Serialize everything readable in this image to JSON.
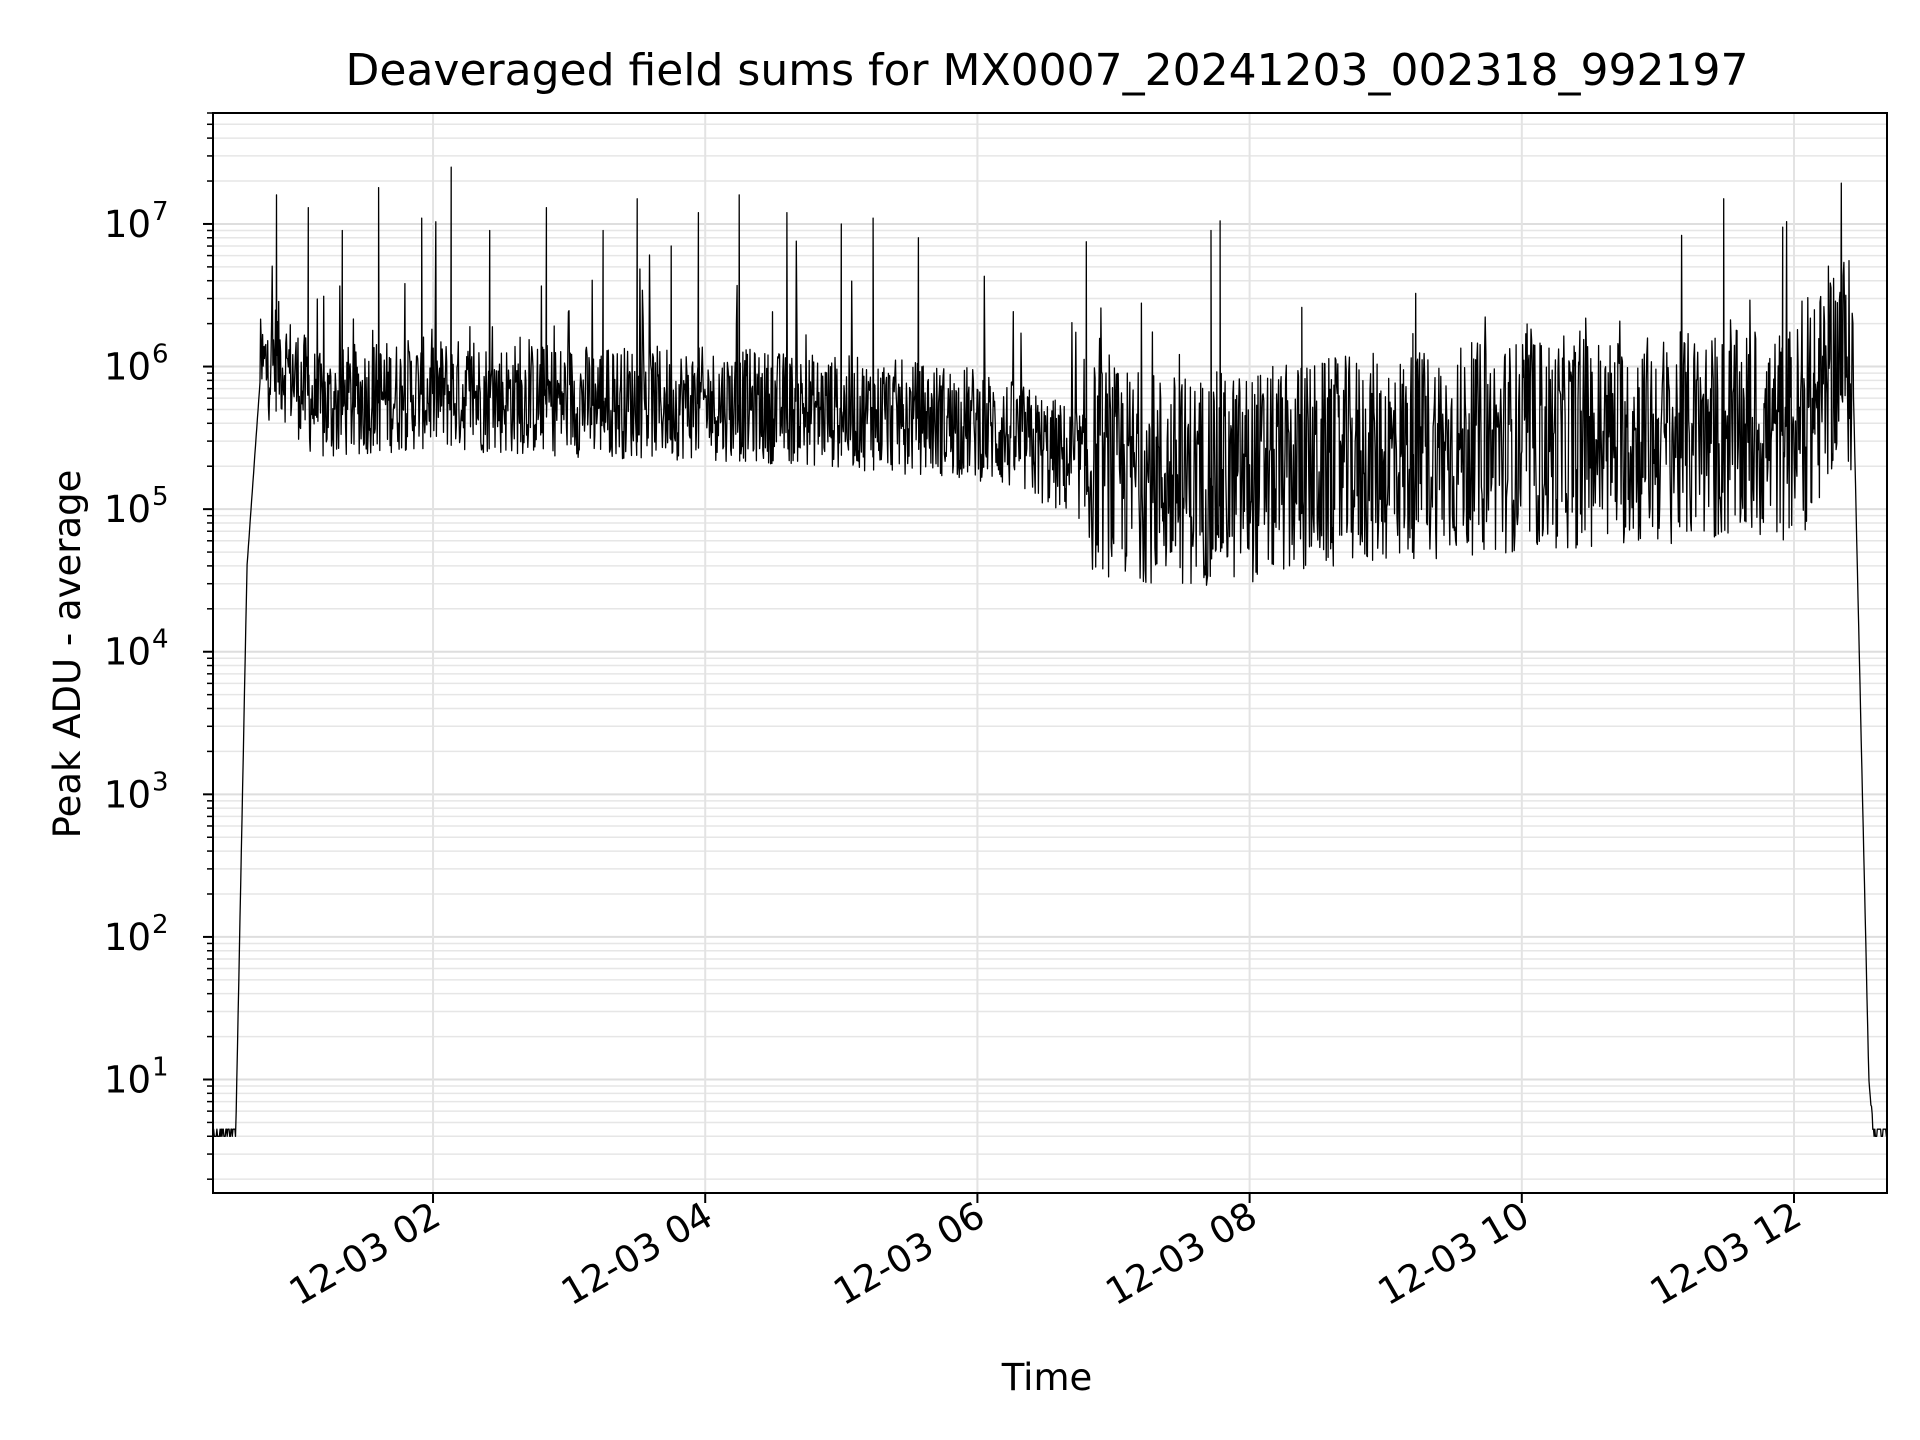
{
  "chart_data": {
    "type": "line",
    "title": "Deaveraged field sums for MX0007_20241203_002318_992197",
    "xlabel": "Time",
    "ylabel": "Peak ADU - average",
    "yscale": "log",
    "ylim": [
      1.6,
      60000000
    ],
    "xlim": [
      "2024-12-03 00:23",
      "2024-12-03 12:41"
    ],
    "grid": "major and minor, light gray",
    "line_color": "#000000",
    "x_ticks": [
      "12-03 02",
      "12-03 04",
      "12-03 06",
      "12-03 08",
      "12-03 10",
      "12-03 12"
    ],
    "y_ticks": [
      {
        "value": 10,
        "base": "10",
        "exp": "1"
      },
      {
        "value": 100,
        "base": "10",
        "exp": "2"
      },
      {
        "value": 1000,
        "base": "10",
        "exp": "3"
      },
      {
        "value": 10000,
        "base": "10",
        "exp": "4"
      },
      {
        "value": 100000,
        "base": "10",
        "exp": "5"
      },
      {
        "value": 1000000,
        "base": "10",
        "exp": "6"
      },
      {
        "value": 10000000,
        "base": "10",
        "exp": "7"
      }
    ],
    "series": [
      {
        "x": [
          "2024-12-03 00:23",
          "2024-12-03 00:32",
          "2024-12-03 00:33",
          "2024-12-03 00:38",
          "2024-12-03 00:44",
          "2024-12-03 00:51",
          "2024-12-03 01:10",
          "2024-12-03 01:30",
          "2024-12-03 02:00",
          "2024-12-03 02:30",
          "2024-12-03 03:00",
          "2024-12-03 03:30",
          "2024-12-03 04:00",
          "2024-12-03 04:30",
          "2024-12-03 05:00",
          "2024-12-03 05:30",
          "2024-12-03 06:00",
          "2024-12-03 06:20",
          "2024-12-03 06:40",
          "2024-12-03 07:00",
          "2024-12-03 07:30",
          "2024-12-03 08:00",
          "2024-12-03 08:30",
          "2024-12-03 09:00",
          "2024-12-03 09:30",
          "2024-12-03 10:00",
          "2024-12-03 10:30",
          "2024-12-03 11:00",
          "2024-12-03 11:30",
          "2024-12-03 11:55",
          "2024-12-03 12:08",
          "2024-12-03 12:15",
          "2024-12-03 12:21",
          "2024-12-03 12:26",
          "2024-12-03 12:33",
          "2024-12-03 12:35",
          "2024-12-03 12:41"
        ],
        "y": [
          4,
          4,
          4,
          40000,
          900000,
          1200000,
          500000,
          600000,
          650000,
          600000,
          580000,
          560000,
          550000,
          520000,
          480000,
          440000,
          400000,
          300000,
          220000,
          180000,
          160000,
          170000,
          200000,
          230000,
          260000,
          280000,
          300000,
          310000,
          320000,
          330000,
          420000,
          900000,
          1300000,
          900000,
          10,
          4,
          4
        ],
        "spikes": [
          {
            "x": "2024-12-03 00:51",
            "y": 16000000
          },
          {
            "x": "2024-12-03 01:05",
            "y": 13000000
          },
          {
            "x": "2024-12-03 01:20",
            "y": 9000000
          },
          {
            "x": "2024-12-03 01:36",
            "y": 18000000
          },
          {
            "x": "2024-12-03 01:55",
            "y": 11000000
          },
          {
            "x": "2024-12-03 02:08",
            "y": 25000000
          },
          {
            "x": "2024-12-03 02:25",
            "y": 9000000
          },
          {
            "x": "2024-12-03 02:50",
            "y": 13000000
          },
          {
            "x": "2024-12-03 03:15",
            "y": 9000000
          },
          {
            "x": "2024-12-03 03:30",
            "y": 15000000
          },
          {
            "x": "2024-12-03 03:45",
            "y": 7000000
          },
          {
            "x": "2024-12-03 03:57",
            "y": 12000000
          },
          {
            "x": "2024-12-03 04:15",
            "y": 16000000
          },
          {
            "x": "2024-12-03 04:36",
            "y": 12000000
          },
          {
            "x": "2024-12-03 05:00",
            "y": 10000000
          },
          {
            "x": "2024-12-03 05:14",
            "y": 11000000
          },
          {
            "x": "2024-12-03 05:34",
            "y": 8000000
          },
          {
            "x": "2024-12-03 06:48",
            "y": 7500000
          },
          {
            "x": "2024-12-03 07:43",
            "y": 9000000
          },
          {
            "x": "2024-12-03 07:47",
            "y": 10500000
          },
          {
            "x": "2024-12-03 08:23",
            "y": 2600000
          },
          {
            "x": "2024-12-03 09:12",
            "y": 1700000
          },
          {
            "x": "2024-12-03 11:29",
            "y": 15000000
          },
          {
            "x": "2024-12-03 11:55",
            "y": 9500000
          },
          {
            "x": "2024-12-03 12:09",
            "y": 2500000
          }
        ]
      }
    ]
  }
}
